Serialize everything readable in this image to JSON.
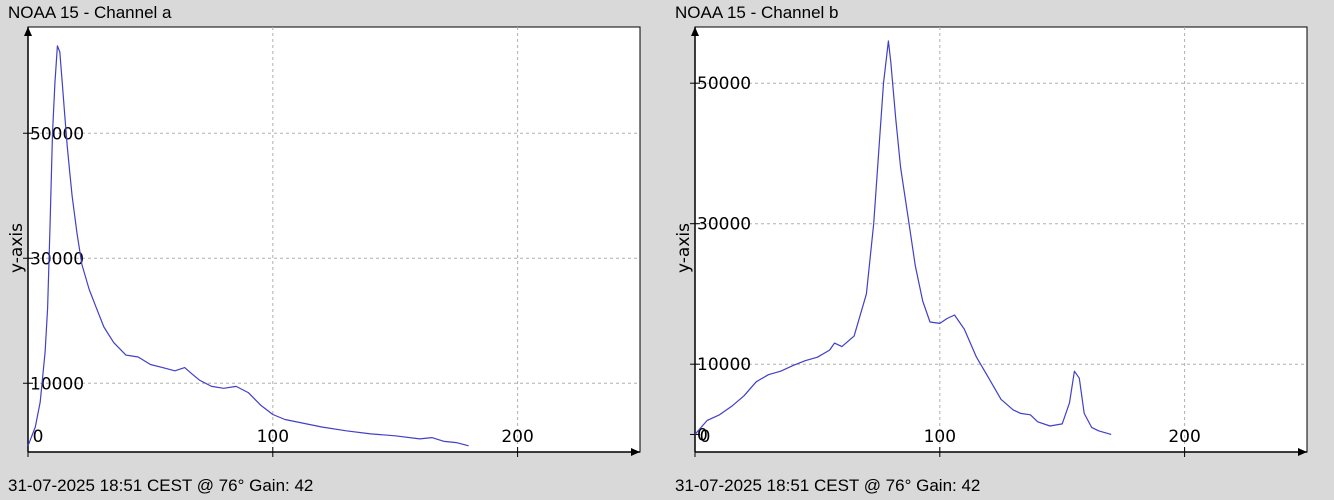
{
  "chart_data": [
    {
      "type": "line",
      "title": "NOAA 15 - Channel a",
      "footer": "31-07-2025 18:51 CEST @ 76° Gain: 42",
      "ylabel": "y-axis",
      "xlabel": "",
      "xlim": [
        0,
        250
      ],
      "ylim": [
        -1000,
        67000
      ],
      "xticks": [
        0,
        100,
        200
      ],
      "yticks": [
        10000,
        30000,
        50000
      ],
      "x_tick_labels": [
        "0",
        "100",
        "200"
      ],
      "y_tick_labels": [
        "10000",
        "30000",
        "50000"
      ],
      "grid": true,
      "line_color": "#4040c8",
      "series": [
        {
          "x": [
            0,
            3,
            5,
            7,
            8,
            9,
            10,
            11,
            12,
            13,
            14,
            15,
            16,
            17,
            18,
            20,
            22,
            25,
            28,
            31,
            35,
            40,
            45,
            50,
            55,
            60,
            64,
            67,
            70,
            75,
            80,
            85,
            90,
            95,
            100,
            105,
            110,
            120,
            130,
            140,
            150,
            160,
            165,
            170,
            175,
            180
          ],
          "y": [
            0,
            3000,
            7000,
            15000,
            22000,
            35000,
            50000,
            58000,
            64000,
            63000,
            58000,
            53000,
            48000,
            44000,
            40000,
            34000,
            29000,
            25000,
            22000,
            19000,
            16500,
            14500,
            14200,
            13000,
            12500,
            12000,
            12500,
            11500,
            10500,
            9500,
            9200,
            9500,
            8500,
            6500,
            5000,
            4200,
            3800,
            3000,
            2400,
            1900,
            1600,
            1100,
            1300,
            700,
            500,
            0
          ]
        }
      ]
    },
    {
      "type": "line",
      "title": "NOAA 15 - Channel b",
      "footer": "31-07-2025 18:51 CEST @ 76° Gain: 42",
      "ylabel": "y-axis",
      "xlabel": "",
      "xlim": [
        0,
        250
      ],
      "ylim": [
        -2500,
        58000
      ],
      "xticks": [
        0,
        100,
        200
      ],
      "yticks": [
        0,
        10000,
        30000,
        50000
      ],
      "x_tick_labels": [
        "0",
        "100",
        "200"
      ],
      "y_tick_labels": [
        "0",
        "10000",
        "30000",
        "50000"
      ],
      "grid": true,
      "line_color": "#4040c8",
      "series": [
        {
          "x": [
            0,
            5,
            10,
            15,
            20,
            25,
            30,
            35,
            40,
            45,
            50,
            55,
            57,
            60,
            65,
            70,
            73,
            75,
            77,
            79,
            80,
            82,
            84,
            87,
            90,
            93,
            96,
            100,
            103,
            106,
            110,
            115,
            120,
            125,
            130,
            133,
            137,
            140,
            145,
            150,
            153,
            155,
            157,
            159,
            162,
            165,
            170
          ],
          "y": [
            0,
            2000,
            2800,
            4000,
            5500,
            7500,
            8500,
            9000,
            9800,
            10500,
            11000,
            12000,
            13000,
            12500,
            14000,
            20000,
            30000,
            40000,
            50000,
            56000,
            53000,
            45000,
            38000,
            31000,
            24000,
            19000,
            16000,
            15800,
            16500,
            17000,
            15000,
            11000,
            8000,
            5000,
            3500,
            3000,
            2800,
            1800,
            1200,
            1500,
            4500,
            9000,
            8000,
            3000,
            1000,
            500,
            0
          ]
        }
      ]
    }
  ]
}
